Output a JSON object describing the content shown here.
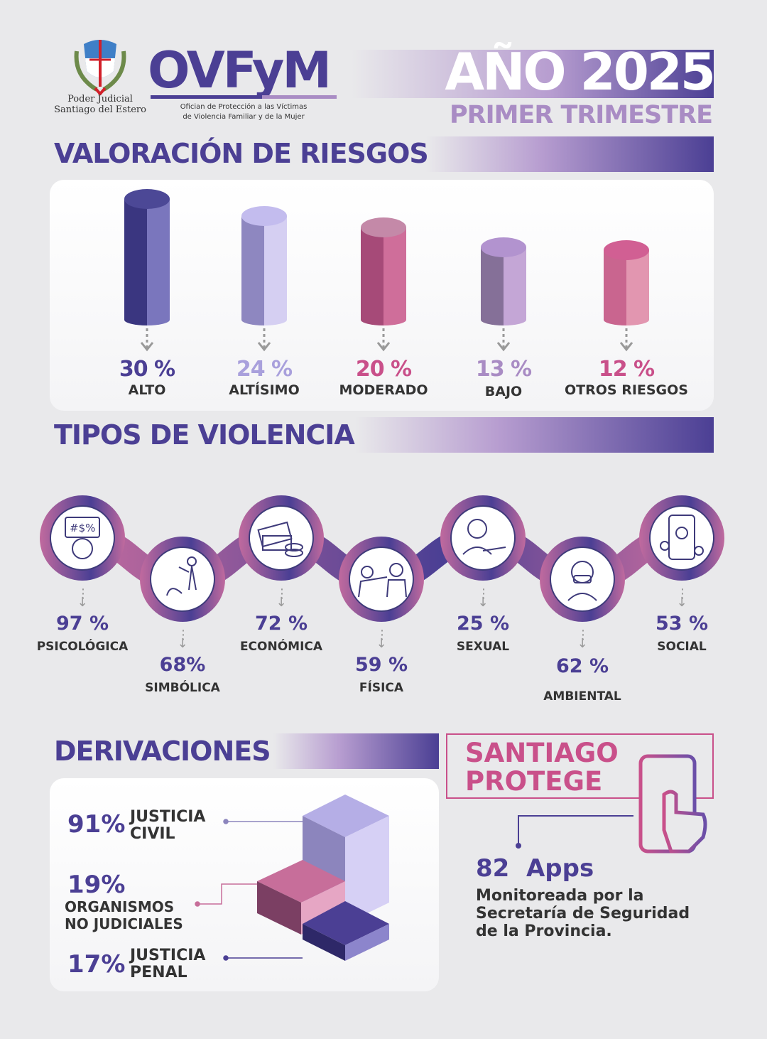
{
  "header": {
    "logo_institution_line1": "Poder Judicial",
    "logo_institution_line2": "Santiago del Estero",
    "brand": "OVFyM",
    "brand_subtitle_line1": "Ofician de Protección a las Víctimas",
    "brand_subtitle_line2": "de Violencia Familiar y de la Mujer",
    "year_label": "AÑO 2025",
    "period": "PRIMER TRIMESTRE"
  },
  "colors": {
    "primary": "#4b3f94",
    "lilac": "#a78bd0",
    "pink": "#c9508a",
    "background": "#e9e9eb"
  },
  "risk": {
    "title": "VALORACIÓN DE RIESGOS"
  },
  "violence": {
    "title": "TIPOS DE VIOLENCIA",
    "items": [
      {
        "pct": "97 %",
        "label": "PSICOLÓGICA",
        "icon": "insult-speech-icon"
      },
      {
        "pct": "68%",
        "label": "SIMBÓLICA",
        "icon": "submission-icon"
      },
      {
        "pct": "72 %",
        "label": "ECONÓMICA",
        "icon": "money-icon"
      },
      {
        "pct": "59 %",
        "label": "FÍSICA",
        "icon": "hitting-icon"
      },
      {
        "pct": "25 %",
        "label": "SEXUAL",
        "icon": "harassment-icon"
      },
      {
        "pct": "62 %",
        "label": "AMBIENTAL",
        "icon": "mask-person-icon"
      },
      {
        "pct": "53 %",
        "label": "SOCIAL",
        "icon": "phone-sad-icon"
      }
    ]
  },
  "derivations": {
    "title": "DERIVACIONES",
    "items": [
      {
        "pct": "91%",
        "label_line1": "JUSTICIA",
        "label_line2": "CIVIL"
      },
      {
        "pct": "19%",
        "label_line1": "ORGANISMOS",
        "label_line2": "NO JUDICIALES"
      },
      {
        "pct": "17%",
        "label_line1": "JUSTICIA",
        "label_line2": "PENAL"
      }
    ]
  },
  "santiago": {
    "title_line1": "SANTIAGO",
    "title_line2": "PROTEGE",
    "count": "82  Apps",
    "desc_line1": "Monitoreada por la",
    "desc_line2": "Secretaría de Seguridad",
    "desc_line3": "de la Provincia."
  },
  "chart_data": {
    "type": "bar",
    "title": "VALORACIÓN DE RIESGOS",
    "categories": [
      "ALTO",
      "ALTÍSIMO",
      "MODERADO",
      "BAJO",
      "OTROS RIESGOS"
    ],
    "values": [
      30,
      24,
      20,
      13,
      12
    ],
    "value_labels": [
      "30 %",
      "24 %",
      "20 %",
      "13 %",
      "12 %"
    ],
    "unit": "%",
    "colors": [
      "#4b3f94",
      "#a9a0dc",
      "#b95785",
      "#a98cc4",
      "#d9789f"
    ],
    "grid": false
  }
}
